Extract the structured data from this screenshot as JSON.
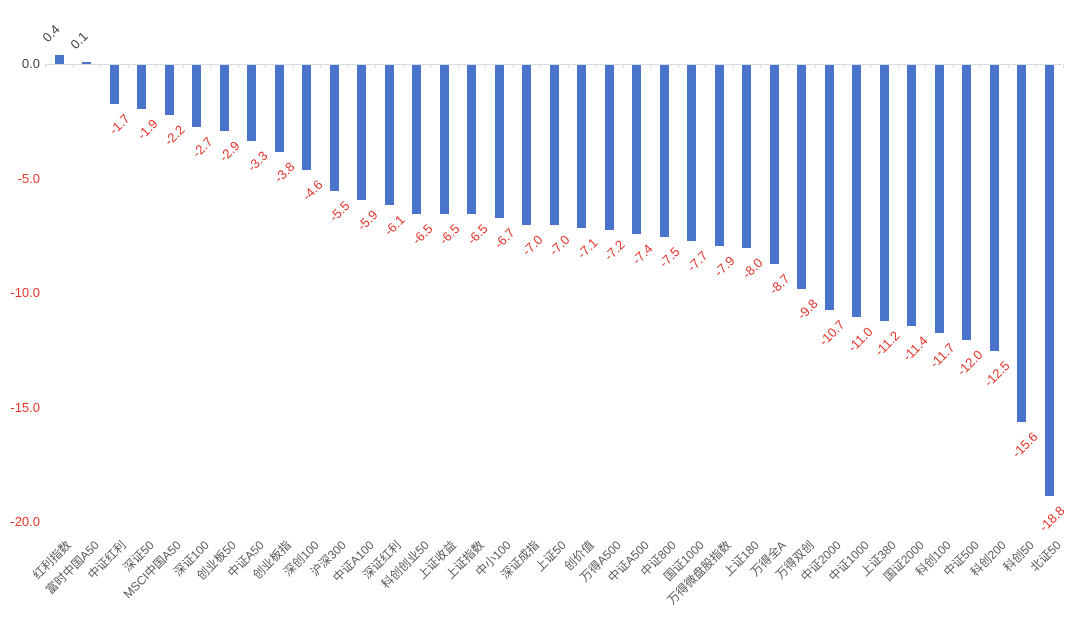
{
  "chart_data": {
    "type": "bar",
    "title": "",
    "xlabel": "",
    "ylabel": "",
    "categories": [
      "红利指数",
      "富时中国A50",
      "中证红利",
      "深证50",
      "MSCI中国A50",
      "深证100",
      "创业板50",
      "中证A50",
      "创业板指",
      "深创100",
      "沪深300",
      "中证A100",
      "深证红利",
      "科创创业50",
      "上证收益",
      "上证指数",
      "中小100",
      "深证成指",
      "上证50",
      "创价值",
      "万得A500",
      "中证A500",
      "中证800",
      "国证1000",
      "万得微盘股指数",
      "上证180",
      "万得全A",
      "万得双创",
      "中证2000",
      "中证1000",
      "上证380",
      "国证2000",
      "科创100",
      "中证500",
      "科创200",
      "科创50",
      "北证50"
    ],
    "values": [
      0.4,
      0.1,
      -1.7,
      -1.9,
      -2.2,
      -2.7,
      -2.9,
      -3.3,
      -3.8,
      -4.6,
      -5.5,
      -5.9,
      -6.1,
      -6.5,
      -6.5,
      -6.5,
      -6.7,
      -7.0,
      -7.0,
      -7.1,
      -7.2,
      -7.4,
      -7.5,
      -7.7,
      -7.9,
      -8.0,
      -8.7,
      -9.8,
      -10.7,
      -11.0,
      -11.2,
      -11.4,
      -11.7,
      -12.0,
      -12.5,
      -15.6,
      -18.8
    ],
    "value_label_decimals": 1,
    "value_labels_rotation_deg": -45,
    "category_labels_rotation_deg": -45,
    "y_axis": {
      "ticks": [
        0,
        -5,
        -10,
        -15,
        -20
      ],
      "tick_labels": [
        "0.0",
        "-5.0",
        "-10.0",
        "-15.0",
        "-20.0"
      ],
      "ylim": [
        -20.5,
        1.5
      ]
    },
    "grid": false,
    "legend": false,
    "colors": {
      "bar": "#4a73cb",
      "negative_label": "#e53228",
      "positive_label": "#404040",
      "zero_tick_label": "#404040",
      "negative_tick_label": "#e53228",
      "category_label": "#595959",
      "axis_line": "#d6dae2"
    }
  }
}
